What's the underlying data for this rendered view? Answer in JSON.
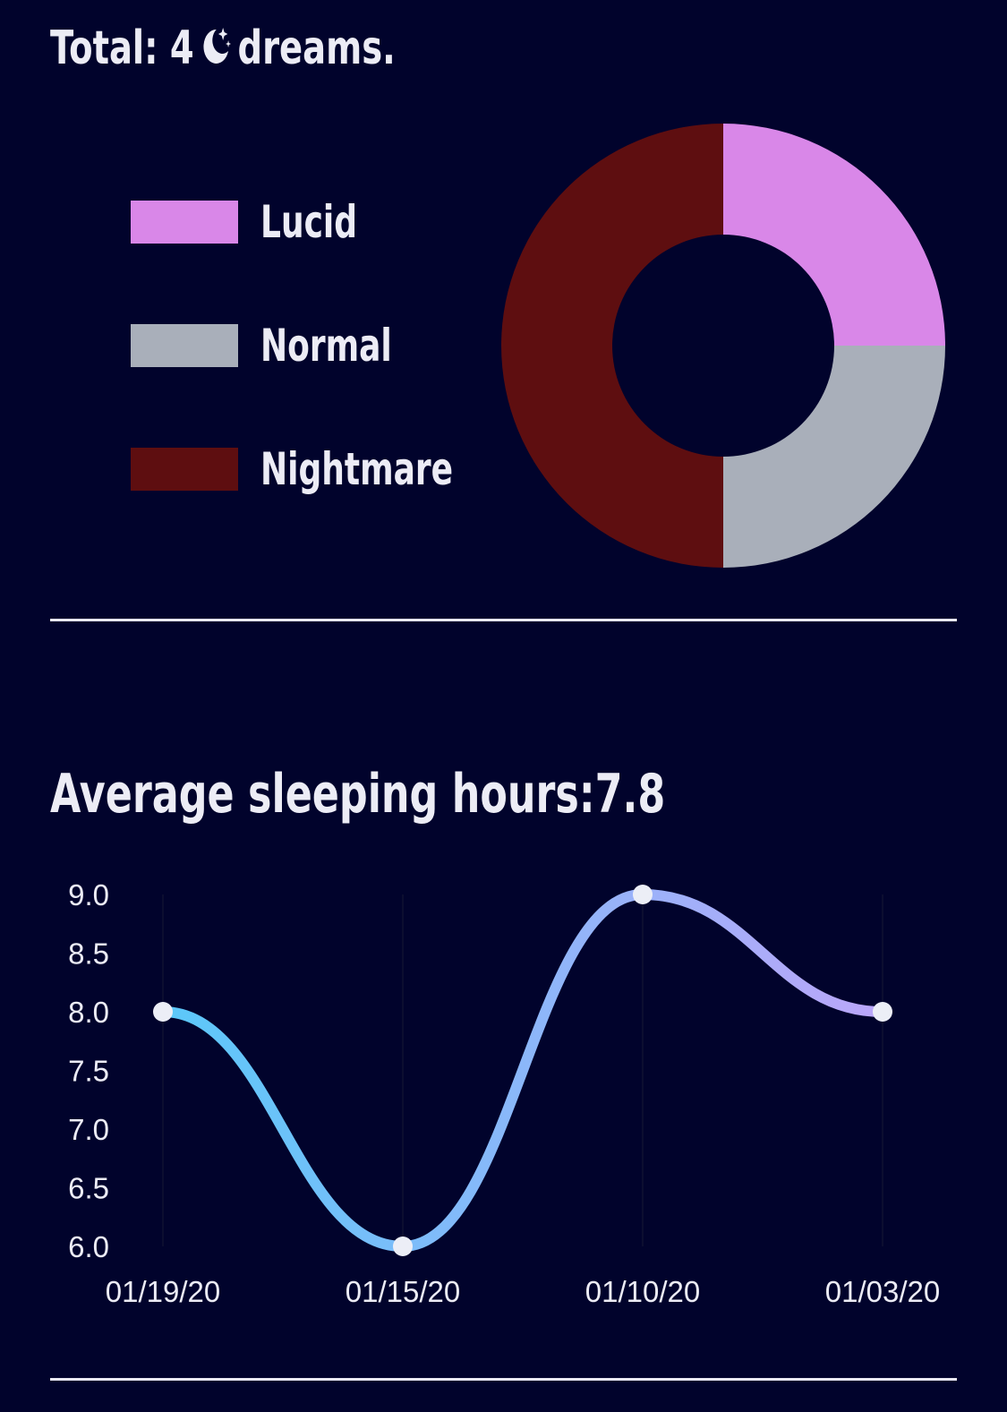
{
  "summary": {
    "total_prefix": "Total: 4",
    "total_suffix": "dreams.",
    "moon_icon": "moon-stars-icon"
  },
  "legend": [
    {
      "label": "Lucid",
      "color": "#d987e8"
    },
    {
      "label": "Normal",
      "color": "#a9afba"
    },
    {
      "label": "Nightmare",
      "color": "#5e0e10"
    }
  ],
  "average": {
    "title": "Average sleeping hours:7.8"
  },
  "chart_data": [
    {
      "type": "pie",
      "donut": true,
      "categories": [
        "Lucid",
        "Normal",
        "Nightmare"
      ],
      "values": [
        1,
        1,
        2
      ],
      "colors": [
        "#d987e8",
        "#a9afba",
        "#5e0e10"
      ],
      "legend": "left"
    },
    {
      "type": "line",
      "categories": [
        "01/19/20",
        "01/15/20",
        "01/10/20",
        "01/03/20"
      ],
      "series": [
        {
          "values": [
            8.0,
            6.0,
            9.0,
            8.0
          ]
        }
      ],
      "yticks": [
        "9.0",
        "8.5",
        "8.0",
        "7.5",
        "7.0",
        "6.5",
        "6.0"
      ],
      "ylim": [
        6.0,
        9.0
      ],
      "line_gradient": [
        "#5bc8f9",
        "#bba6f9"
      ],
      "point_color": "#eceef6",
      "grid": "vertical"
    }
  ]
}
